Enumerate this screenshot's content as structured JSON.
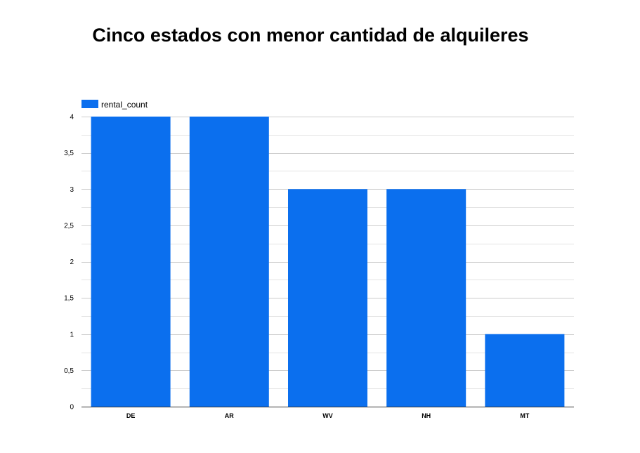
{
  "chart_data": {
    "type": "bar",
    "title": "Cinco estados con menor cantidad de alquileres",
    "xlabel": "",
    "ylabel": "",
    "categories": [
      "DE",
      "AR",
      "WV",
      "NH",
      "MT"
    ],
    "series": [
      {
        "name": "rental_count",
        "values": [
          4,
          4,
          3,
          3,
          1
        ]
      }
    ],
    "ylim": [
      0,
      4
    ],
    "y_ticks": [
      "0",
      "0,5",
      "1",
      "1,5",
      "2",
      "2,5",
      "3",
      "3,5",
      "4"
    ],
    "grid": true,
    "legend_position": "top-left",
    "colors": {
      "bar": "#0b6fee",
      "grid": "#cccccc",
      "axis": "#333333"
    }
  }
}
